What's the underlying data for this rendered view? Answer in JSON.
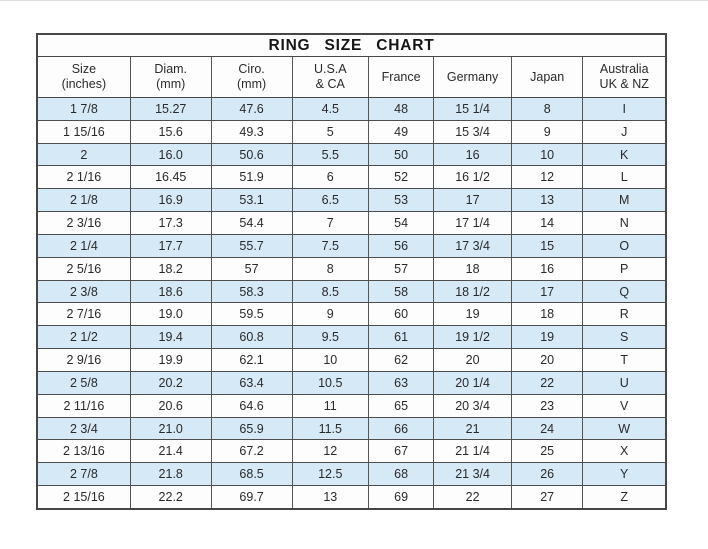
{
  "chart_data": {
    "type": "table",
    "title": "RING SIZE CHART",
    "columns": [
      {
        "label": "Size",
        "sub": "(inches)"
      },
      {
        "label": "Diam.",
        "sub": "(mm)"
      },
      {
        "label": "Ciro.",
        "sub": "(mm)"
      },
      {
        "label": "U.S.A",
        "sub": "& CA"
      },
      {
        "label": "France",
        "sub": ""
      },
      {
        "label": "Germany",
        "sub": ""
      },
      {
        "label": "Japan",
        "sub": ""
      },
      {
        "label": "Australia",
        "sub": "UK & NZ"
      }
    ],
    "rows": [
      [
        "1 7/8",
        "15.27",
        "47.6",
        "4.5",
        "48",
        "15 1/4",
        "8",
        "I"
      ],
      [
        "1 15/16",
        "15.6",
        "49.3",
        "5",
        "49",
        "15 3/4",
        "9",
        "J"
      ],
      [
        "2",
        "16.0",
        "50.6",
        "5.5",
        "50",
        "16",
        "10",
        "K"
      ],
      [
        "2 1/16",
        "16.45",
        "51.9",
        "6",
        "52",
        "16 1/2",
        "12",
        "L"
      ],
      [
        "2 1/8",
        "16.9",
        "53.1",
        "6.5",
        "53",
        "17",
        "13",
        "M"
      ],
      [
        "2 3/16",
        "17.3",
        "54.4",
        "7",
        "54",
        "17 1/4",
        "14",
        "N"
      ],
      [
        "2 1/4",
        "17.7",
        "55.7",
        "7.5",
        "56",
        "17 3/4",
        "15",
        "O"
      ],
      [
        "2 5/16",
        "18.2",
        "57",
        "8",
        "57",
        "18",
        "16",
        "P"
      ],
      [
        "2 3/8",
        "18.6",
        "58.3",
        "8.5",
        "58",
        "18 1/2",
        "17",
        "Q"
      ],
      [
        "2 7/16",
        "19.0",
        "59.5",
        "9",
        "60",
        "19",
        "18",
        "R"
      ],
      [
        "2 1/2",
        "19.4",
        "60.8",
        "9.5",
        "61",
        "19 1/2",
        "19",
        "S"
      ],
      [
        "2 9/16",
        "19.9",
        "62.1",
        "10",
        "62",
        "20",
        "20",
        "T"
      ],
      [
        "2 5/8",
        "20.2",
        "63.4",
        "10.5",
        "63",
        "20 1/4",
        "22",
        "U"
      ],
      [
        "2 11/16",
        "20.6",
        "64.6",
        "11",
        "65",
        "20 3/4",
        "23",
        "V"
      ],
      [
        "2 3/4",
        "21.0",
        "65.9",
        "11.5",
        "66",
        "21",
        "24",
        "W"
      ],
      [
        "2 13/16",
        "21.4",
        "67.2",
        "12",
        "67",
        "21 1/4",
        "25",
        "X"
      ],
      [
        "2 7/8",
        "21.8",
        "68.5",
        "12.5",
        "68",
        "21 3/4",
        "26",
        "Y"
      ],
      [
        "2 15/16",
        "22.2",
        "69.7",
        "13",
        "69",
        "22",
        "27",
        "Z"
      ]
    ],
    "layout": {
      "alternating_row_color_starts_at_first_data_row": true,
      "grid": true
    }
  },
  "colors": {
    "row_alt_blue": "#d6e9f7",
    "row_base": "#fdfdfd",
    "border": "#474747",
    "text": "#2a2a2a"
  }
}
